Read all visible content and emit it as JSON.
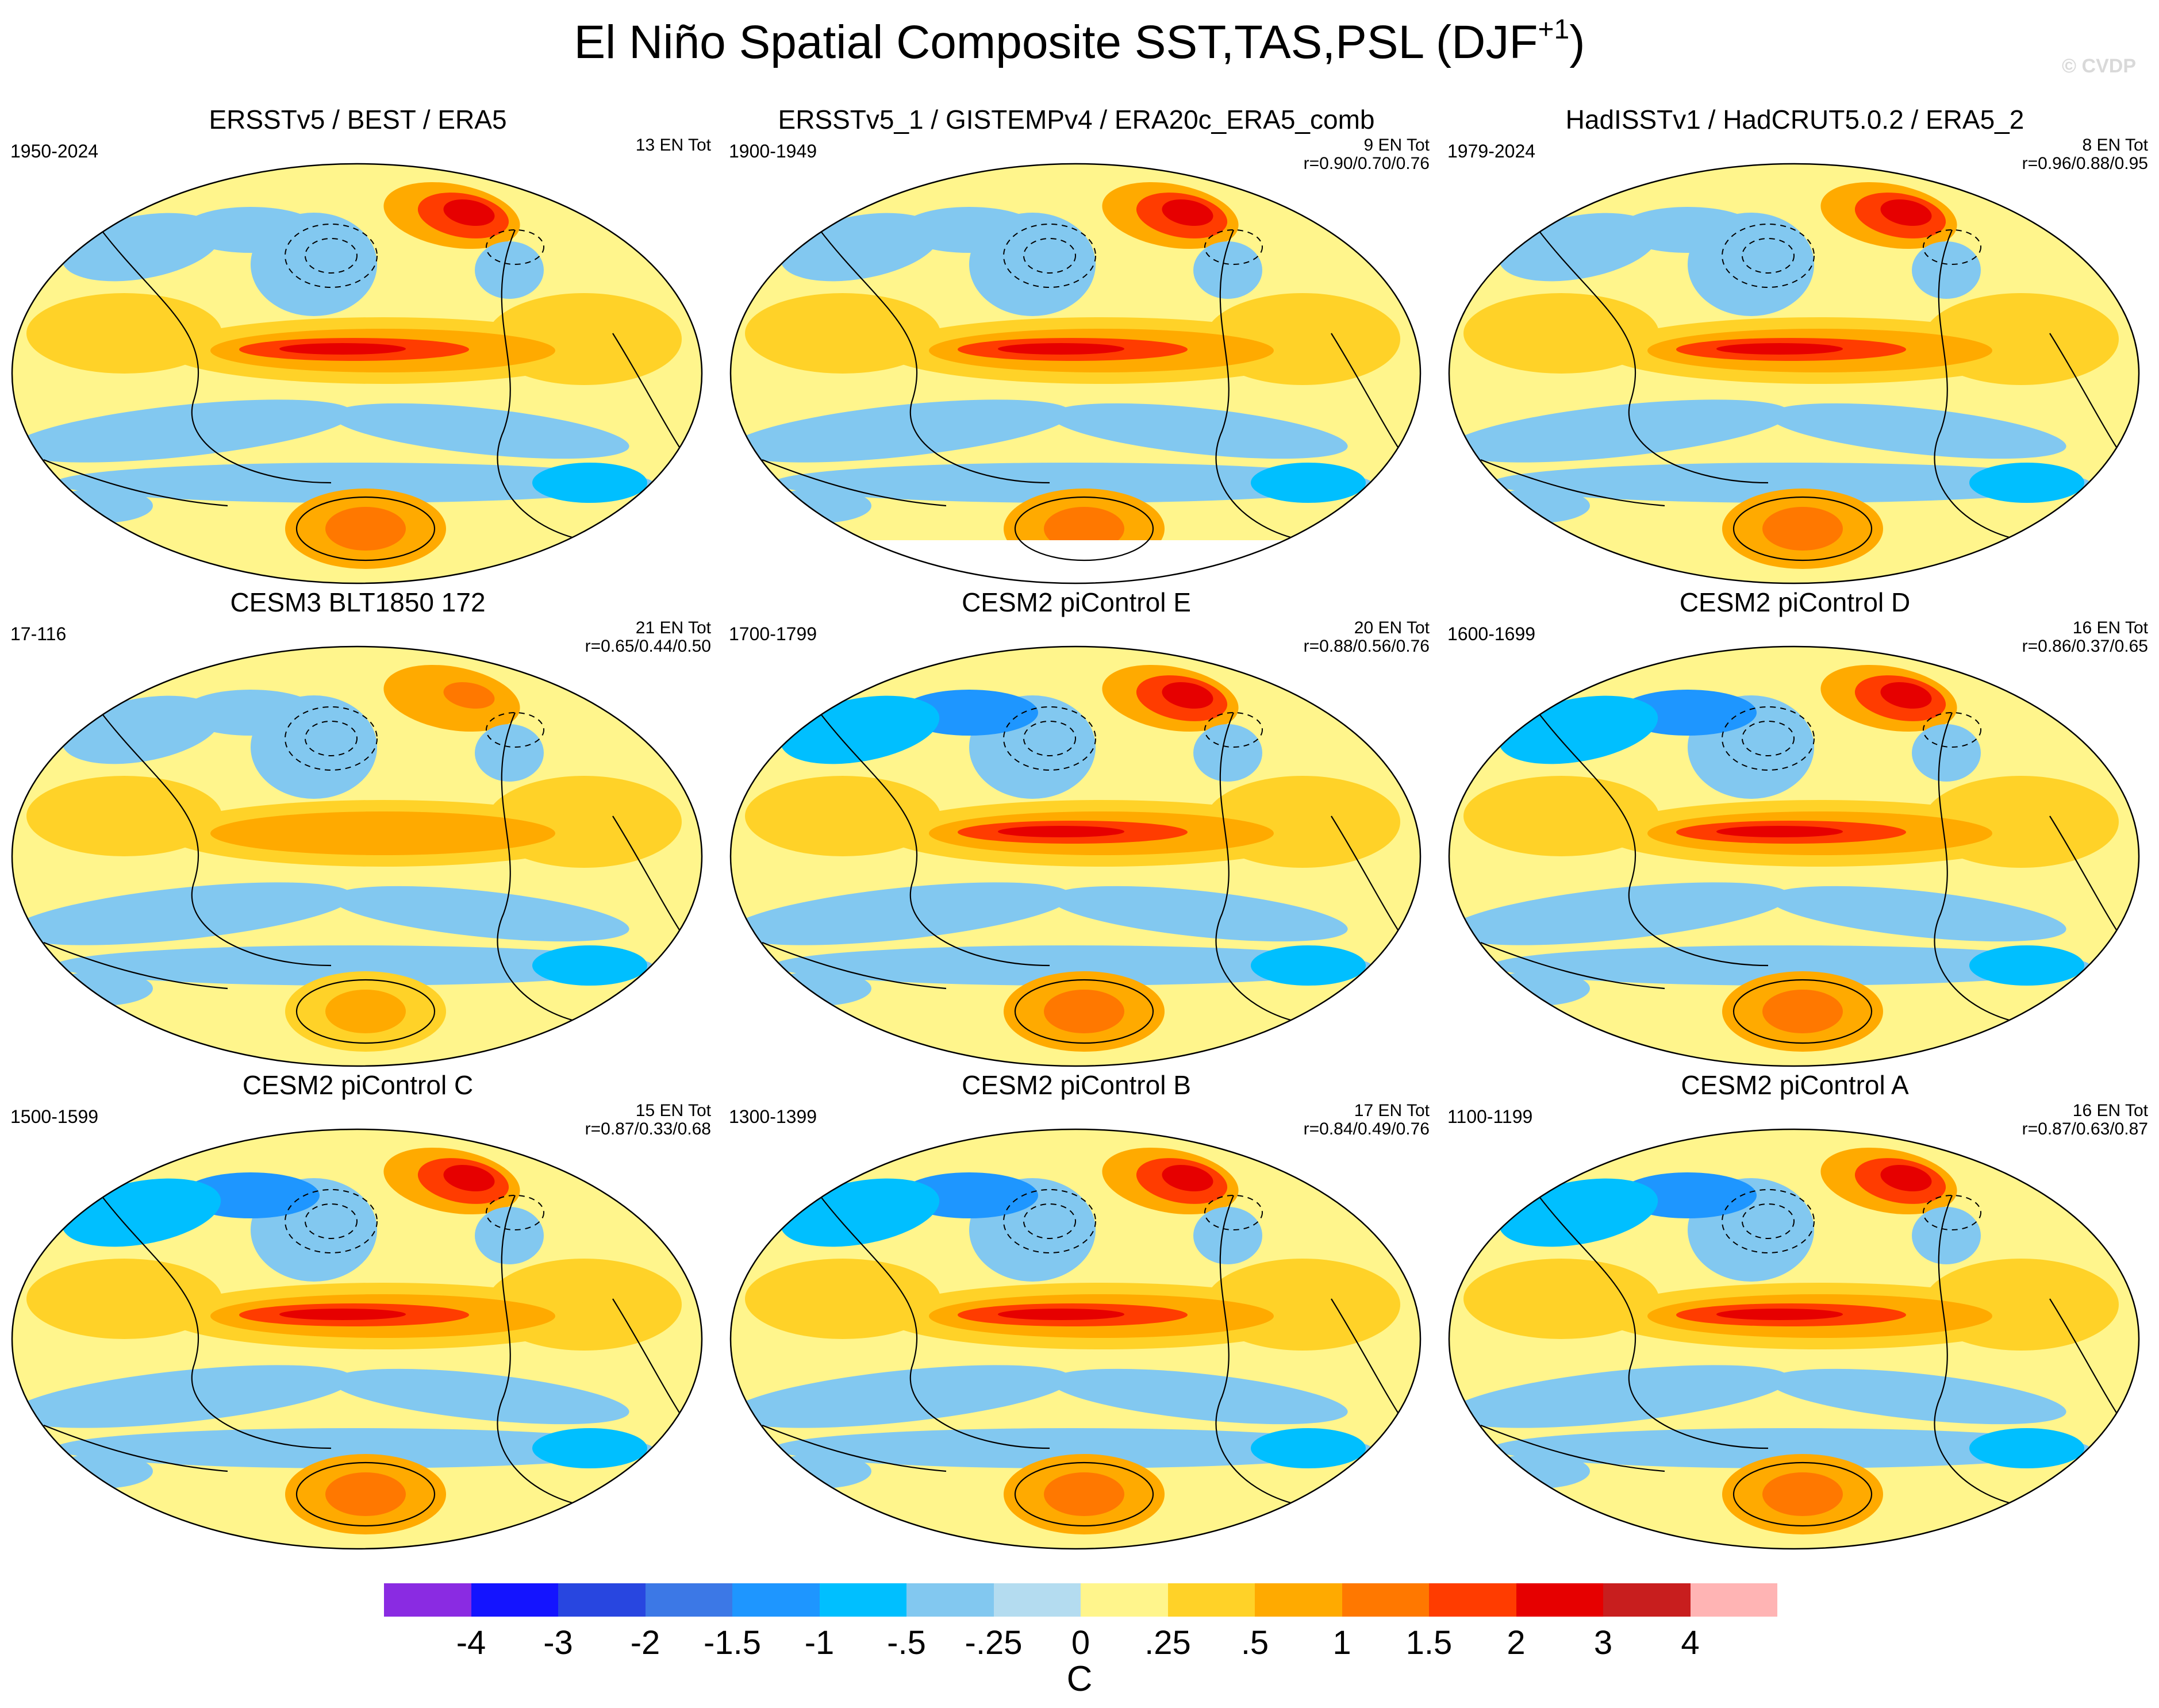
{
  "figure": {
    "title": "El Niño Spatial Composite SST,TAS,PSL (DJF",
    "title_sup": "+1",
    "title_close": ")",
    "credit": "© CVDP"
  },
  "panels": [
    {
      "title": "ERSSTv5 / BEST / ERA5",
      "years": "1950-2024",
      "count": "13 EN Tot",
      "corr": "",
      "variant": 0
    },
    {
      "title": "ERSSTv5_1 / GISTEMPv4 / ERA20c_ERA5_comb",
      "years": "1900-1949",
      "count": "9 EN Tot",
      "corr": "r=0.90/0.70/0.76",
      "variant": 1
    },
    {
      "title": "HadISSTv1 / HadCRUT5.0.2 / ERA5_2",
      "years": "1979-2024",
      "count": "8 EN Tot",
      "corr": "r=0.96/0.88/0.95",
      "variant": 0
    },
    {
      "title": "CESM3 BLT1850 172",
      "years": "17-116",
      "count": "21 EN Tot",
      "corr": "r=0.65/0.44/0.50",
      "variant": 2
    },
    {
      "title": "CESM2 piControl E",
      "years": "1700-1799",
      "count": "20 EN Tot",
      "corr": "r=0.88/0.56/0.76",
      "variant": 3
    },
    {
      "title": "CESM2 piControl D",
      "years": "1600-1699",
      "count": "16 EN Tot",
      "corr": "r=0.86/0.37/0.65",
      "variant": 3
    },
    {
      "title": "CESM2 piControl C",
      "years": "1500-1599",
      "count": "15 EN Tot",
      "corr": "r=0.87/0.33/0.68",
      "variant": 3
    },
    {
      "title": "CESM2 piControl B",
      "years": "1300-1399",
      "count": "17 EN Tot",
      "corr": "r=0.84/0.49/0.76",
      "variant": 3
    },
    {
      "title": "CESM2 piControl A",
      "years": "1100-1199",
      "count": "16 EN Tot",
      "corr": "r=0.87/0.63/0.87",
      "variant": 3
    }
  ],
  "colorbar": {
    "colors": [
      "#8a2be2",
      "#1414ff",
      "#2846e0",
      "#3c78e6",
      "#1e96ff",
      "#00bfff",
      "#82c8f0",
      "#b4dcf0",
      "#fff58c",
      "#ffd228",
      "#ffaa00",
      "#ff7800",
      "#ff3c00",
      "#e60000",
      "#c81e1e",
      "#ffb4b4"
    ],
    "labels": [
      "-4",
      "-3",
      "-2",
      "-1.5",
      "-1",
      "-.5",
      "-.25",
      "0",
      ".25",
      ".5",
      "1",
      "1.5",
      "2",
      "3",
      "4"
    ],
    "unit": "C"
  },
  "legend_colors": {
    "ocean_neutral": "#fff58c",
    "warm": "#ffaa00",
    "hot": "#e60000",
    "cool": "#82c8f0",
    "cold": "#1e96ff"
  }
}
